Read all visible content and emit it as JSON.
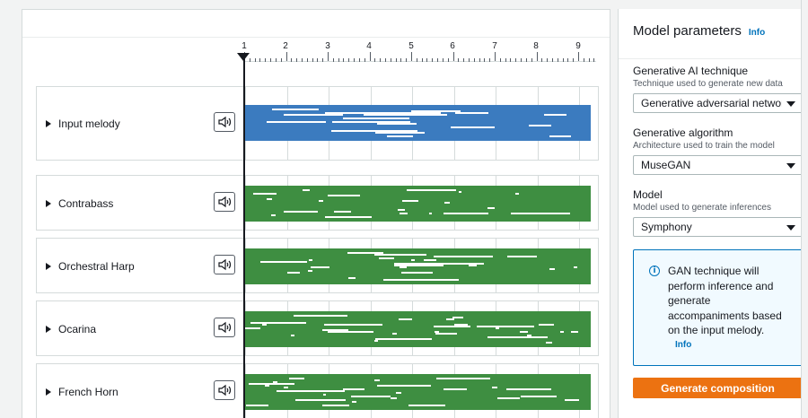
{
  "ruler": {
    "measures": [
      "1",
      "2",
      "3",
      "4",
      "5",
      "6",
      "7",
      "8",
      "9"
    ]
  },
  "tracks": [
    {
      "label": "Input melody",
      "color": "#3b7bbf",
      "speaker_icon": "speaker-icon"
    },
    {
      "label": "Contrabass",
      "color": "#3e8e41",
      "speaker_icon": "speaker-icon"
    },
    {
      "label": "Orchestral Harp",
      "color": "#3e8e41",
      "speaker_icon": "speaker-icon"
    },
    {
      "label": "Ocarina",
      "color": "#3e8e41",
      "speaker_icon": "speaker-icon"
    },
    {
      "label": "French Horn",
      "color": "#3e8e41",
      "speaker_icon": "speaker-icon"
    }
  ],
  "params": {
    "title": "Model parameters",
    "info_link": "Info",
    "technique": {
      "label": "Generative AI technique",
      "description": "Technique used to generate new data",
      "value": "Generative adversarial networks"
    },
    "algorithm": {
      "label": "Generative algorithm",
      "description": "Architecture used to train the model",
      "value": "MuseGAN"
    },
    "model": {
      "label": "Model",
      "description": "Model used to generate inferences",
      "value": "Symphony"
    },
    "alert": {
      "message": "GAN technique will perform inference and generate accompaniments based on the input melody.",
      "link": "Info"
    },
    "generate_button": "Generate composition"
  },
  "colors": {
    "accent_button": "#ec7211",
    "link": "#0073bb",
    "input_melody": "#3b7bbf",
    "generated_track": "#3e8e41"
  }
}
